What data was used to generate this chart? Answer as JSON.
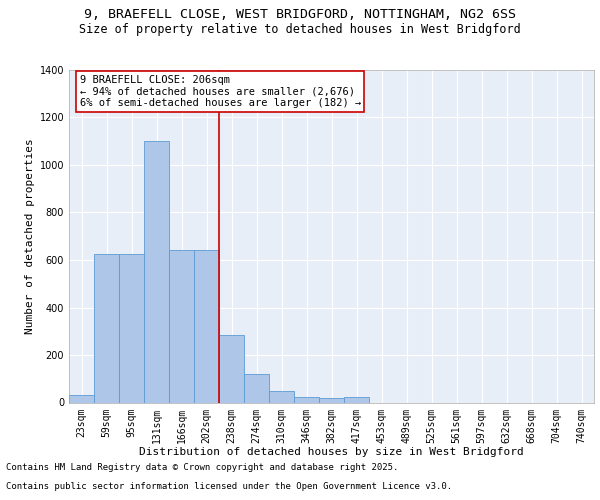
{
  "title_line1": "9, BRAEFELL CLOSE, WEST BRIDGFORD, NOTTINGHAM, NG2 6SS",
  "title_line2": "Size of property relative to detached houses in West Bridgford",
  "xlabel": "Distribution of detached houses by size in West Bridgford",
  "ylabel": "Number of detached properties",
  "bar_color": "#aec6e8",
  "bar_edge_color": "#5b9bd5",
  "background_color": "#e8eef7",
  "grid_color": "#ffffff",
  "categories": [
    "23sqm",
    "59sqm",
    "95sqm",
    "131sqm",
    "166sqm",
    "202sqm",
    "238sqm",
    "274sqm",
    "310sqm",
    "346sqm",
    "382sqm",
    "417sqm",
    "453sqm",
    "489sqm",
    "525sqm",
    "561sqm",
    "597sqm",
    "632sqm",
    "668sqm",
    "704sqm",
    "740sqm"
  ],
  "values": [
    30,
    625,
    625,
    1100,
    640,
    640,
    285,
    120,
    50,
    25,
    20,
    25,
    0,
    0,
    0,
    0,
    0,
    0,
    0,
    0,
    0
  ],
  "ylim": [
    0,
    1400
  ],
  "yticks": [
    0,
    200,
    400,
    600,
    800,
    1000,
    1200,
    1400
  ],
  "property_line_x": 5.5,
  "annotation_text": "9 BRAEFELL CLOSE: 206sqm\n← 94% of detached houses are smaller (2,676)\n6% of semi-detached houses are larger (182) →",
  "annotation_box_color": "#cc0000",
  "vline_color": "#cc0000",
  "footnote_line1": "Contains HM Land Registry data © Crown copyright and database right 2025.",
  "footnote_line2": "Contains public sector information licensed under the Open Government Licence v3.0.",
  "title_fontsize": 9.5,
  "subtitle_fontsize": 8.5,
  "axis_label_fontsize": 8,
  "tick_fontsize": 7,
  "annotation_fontsize": 7.5,
  "footnote_fontsize": 6.5
}
